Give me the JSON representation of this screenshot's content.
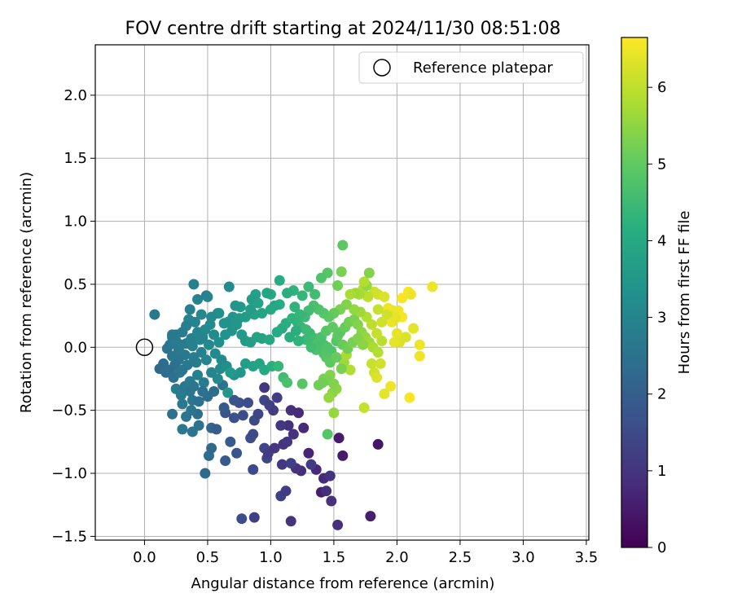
{
  "chart_data": {
    "type": "scatter",
    "title": "FOV centre drift starting at 2024/11/30 08:51:08",
    "xlabel": "Angular distance from reference (arcmin)",
    "ylabel": "Rotation from reference (arcmin)",
    "xlim": [
      -0.39,
      3.52
    ],
    "ylim": [
      -1.53,
      2.4
    ],
    "xticks": [
      0.0,
      0.5,
      1.0,
      1.5,
      2.0,
      2.5,
      3.0,
      3.5
    ],
    "xtick_labels": [
      "0.0",
      "0.5",
      "1.0",
      "1.5",
      "2.0",
      "2.5",
      "3.0",
      "3.5"
    ],
    "yticks": [
      -1.5,
      -1.0,
      -0.5,
      0.0,
      0.5,
      1.0,
      1.5,
      2.0
    ],
    "ytick_labels": [
      "−1.5",
      "−1.0",
      "−0.5",
      "0.0",
      "0.5",
      "1.0",
      "1.5",
      "2.0"
    ],
    "grid": true,
    "legend": {
      "position": "top-right",
      "entries": [
        "Reference platepar"
      ]
    },
    "reference_point": {
      "x": 0.0,
      "y": 0.0,
      "label": "Reference platepar"
    },
    "colorbar": {
      "label": "Hours from first FF file",
      "colormap": "viridis",
      "range": [
        0,
        6.65
      ],
      "ticks": [
        0,
        1,
        2,
        3,
        4,
        5,
        6
      ],
      "tick_labels": [
        "0",
        "1",
        "2",
        "3",
        "4",
        "5",
        "6"
      ]
    },
    "points": [
      [
        0.77,
        -1.36,
        1.6
      ],
      [
        0.87,
        -1.35,
        1.3
      ],
      [
        1.16,
        -1.38,
        1.0
      ],
      [
        1.53,
        -1.41,
        0.9
      ],
      [
        1.79,
        -1.34,
        0.6
      ],
      [
        1.48,
        -1.22,
        1.0
      ],
      [
        1.08,
        -1.18,
        1.3
      ],
      [
        1.12,
        -1.14,
        1.2
      ],
      [
        1.4,
        -1.15,
        0.6
      ],
      [
        1.44,
        -1.14,
        0.9
      ],
      [
        1.42,
        -1.04,
        0.8
      ],
      [
        1.47,
        -1.02,
        1.0
      ],
      [
        1.36,
        -0.97,
        0.8
      ],
      [
        1.32,
        -0.93,
        1.2
      ],
      [
        1.24,
        -0.98,
        0.9
      ],
      [
        1.2,
        -0.96,
        1.0
      ],
      [
        1.09,
        -0.93,
        1.1
      ],
      [
        1.16,
        -0.92,
        1.3
      ],
      [
        0.97,
        -0.88,
        1.4
      ],
      [
        0.86,
        -0.97,
        1.5
      ],
      [
        0.73,
        -0.84,
        1.8
      ],
      [
        0.64,
        -0.9,
        1.9
      ],
      [
        0.48,
        -1.0,
        2.3
      ],
      [
        0.51,
        -0.86,
        2.4
      ],
      [
        0.53,
        -0.8,
        2.3
      ],
      [
        0.53,
        -0.64,
        2.2
      ],
      [
        0.57,
        -0.65,
        2.0
      ],
      [
        0.68,
        -0.75,
        1.9
      ],
      [
        0.84,
        -0.72,
        1.6
      ],
      [
        0.86,
        -0.69,
        1.5
      ],
      [
        0.95,
        -0.8,
        1.4
      ],
      [
        0.98,
        -0.84,
        1.2
      ],
      [
        1.03,
        -0.8,
        1.1
      ],
      [
        1.1,
        -0.77,
        1.0
      ],
      [
        1.13,
        -0.75,
        1.1
      ],
      [
        1.18,
        -0.69,
        1.0
      ],
      [
        1.14,
        -0.62,
        0.9
      ],
      [
        1.26,
        -0.64,
        0.8
      ],
      [
        1.3,
        -0.84,
        0.7
      ],
      [
        1.57,
        -0.86,
        0.5
      ],
      [
        1.54,
        -0.72,
        0.5
      ],
      [
        1.85,
        -0.77,
        0.4
      ],
      [
        1.45,
        -0.69,
        4.9
      ],
      [
        0.64,
        -0.52,
        1.8
      ],
      [
        0.71,
        -0.56,
        1.7
      ],
      [
        0.78,
        -0.54,
        1.6
      ],
      [
        0.87,
        -0.58,
        1.5
      ],
      [
        0.9,
        -0.53,
        1.4
      ],
      [
        0.95,
        -0.42,
        1.4
      ],
      [
        0.99,
        -0.46,
        1.3
      ],
      [
        1.02,
        -0.5,
        1.2
      ],
      [
        1.05,
        -0.4,
        1.2
      ],
      [
        0.95,
        -0.32,
        1.1
      ],
      [
        1.08,
        -0.62,
        1.1
      ],
      [
        1.16,
        -0.5,
        0.9
      ],
      [
        1.22,
        -0.52,
        0.8
      ],
      [
        0.75,
        -0.44,
        1.7
      ],
      [
        0.82,
        -0.44,
        1.6
      ],
      [
        0.71,
        -0.42,
        1.8
      ],
      [
        0.63,
        -0.48,
        1.9
      ],
      [
        0.42,
        -0.53,
        2.4
      ],
      [
        0.43,
        -0.62,
        2.5
      ],
      [
        0.38,
        -0.67,
        2.6
      ],
      [
        0.3,
        -0.65,
        2.7
      ],
      [
        0.22,
        -0.53,
        2.5
      ],
      [
        0.33,
        -0.55,
        2.6
      ],
      [
        0.37,
        -0.5,
        2.6
      ],
      [
        0.3,
        -0.45,
        2.7
      ],
      [
        0.38,
        -0.42,
        2.6
      ],
      [
        0.43,
        -0.43,
        2.5
      ],
      [
        0.5,
        -0.39,
        2.4
      ],
      [
        0.55,
        -0.35,
        2.4
      ],
      [
        0.62,
        -0.3,
        2.5
      ],
      [
        0.66,
        -0.36,
        3.5
      ],
      [
        0.29,
        -0.38,
        2.8
      ],
      [
        0.25,
        -0.33,
        2.8
      ],
      [
        0.32,
        -0.31,
        2.7
      ],
      [
        0.36,
        -0.27,
        2.8
      ],
      [
        0.42,
        -0.22,
        2.9
      ],
      [
        0.47,
        -0.28,
        2.8
      ],
      [
        0.53,
        -0.2,
        3.0
      ],
      [
        0.58,
        -0.25,
        3.1
      ],
      [
        0.6,
        -0.17,
        3.2
      ],
      [
        0.65,
        -0.15,
        3.3
      ],
      [
        0.71,
        -0.22,
        3.4
      ],
      [
        0.76,
        -0.2,
        3.5
      ],
      [
        0.68,
        -0.2,
        3.6
      ],
      [
        0.8,
        -0.13,
        3.7
      ],
      [
        0.86,
        -0.15,
        3.8
      ],
      [
        0.91,
        -0.13,
        3.9
      ],
      [
        0.95,
        -0.18,
        4.0
      ],
      [
        1.01,
        -0.15,
        4.2
      ],
      [
        1.06,
        -0.15,
        4.4
      ],
      [
        1.1,
        -0.24,
        4.6
      ],
      [
        1.13,
        -0.28,
        4.7
      ],
      [
        1.25,
        -0.29,
        4.9
      ],
      [
        1.38,
        -0.3,
        5.2
      ],
      [
        1.42,
        -0.25,
        5.3
      ],
      [
        1.47,
        -0.22,
        5.4
      ],
      [
        1.49,
        -0.36,
        5.5
      ],
      [
        1.5,
        -0.52,
        5.6
      ],
      [
        1.46,
        -0.4,
        5.6
      ],
      [
        1.52,
        -0.33,
        5.5
      ],
      [
        1.58,
        -0.12,
        5.7
      ],
      [
        1.6,
        -0.06,
        5.8
      ],
      [
        1.63,
        -0.18,
        5.9
      ],
      [
        1.74,
        -0.48,
        6.1
      ],
      [
        1.82,
        -0.2,
        6.2
      ],
      [
        1.84,
        -0.24,
        6.3
      ],
      [
        1.8,
        -0.13,
        6.1
      ],
      [
        1.87,
        -0.13,
        6.2
      ],
      [
        1.9,
        -0.37,
        6.4
      ],
      [
        1.95,
        -0.31,
        6.5
      ],
      [
        2.1,
        -0.4,
        6.6
      ],
      [
        2.18,
        -0.07,
        6.5
      ],
      [
        2.18,
        0.02,
        6.5
      ],
      [
        2.13,
        0.15,
        6.4
      ],
      [
        2.07,
        0.08,
        6.3
      ],
      [
        2.02,
        0.04,
        6.3
      ],
      [
        1.98,
        0.04,
        6.4
      ],
      [
        2.0,
        0.11,
        6.4
      ],
      [
        1.96,
        0.2,
        6.5
      ],
      [
        1.97,
        0.29,
        6.4
      ],
      [
        2.01,
        0.29,
        6.5
      ],
      [
        2.04,
        0.24,
        6.6
      ],
      [
        1.99,
        0.23,
        6.4
      ],
      [
        1.88,
        0.2,
        6.2
      ],
      [
        1.93,
        0.31,
        6.5
      ],
      [
        2.09,
        0.44,
        6.6
      ],
      [
        2.11,
        0.42,
        6.5
      ],
      [
        2.04,
        0.39,
        6.6
      ],
      [
        2.28,
        0.48,
        6.5
      ],
      [
        1.85,
        0.42,
        6.2
      ],
      [
        1.82,
        0.44,
        6.2
      ],
      [
        1.9,
        0.4,
        6.3
      ],
      [
        1.77,
        0.4,
        6.0
      ],
      [
        1.73,
        0.46,
        5.9
      ],
      [
        1.7,
        0.42,
        5.8
      ],
      [
        1.67,
        0.43,
        5.7
      ],
      [
        1.63,
        0.42,
        5.8
      ],
      [
        1.76,
        0.49,
        5.6
      ],
      [
        1.74,
        0.52,
        5.9
      ],
      [
        1.78,
        0.59,
        5.4
      ],
      [
        1.56,
        0.6,
        5.3
      ],
      [
        1.57,
        0.81,
        5.0
      ],
      [
        1.53,
        0.49,
        5.2
      ],
      [
        1.45,
        0.59,
        4.9
      ],
      [
        1.4,
        0.55,
        4.8
      ],
      [
        1.35,
        0.42,
        4.6
      ],
      [
        1.3,
        0.48,
        4.5
      ],
      [
        1.25,
        0.41,
        4.4
      ],
      [
        1.18,
        0.45,
        4.3
      ],
      [
        1.13,
        0.43,
        4.2
      ],
      [
        1.07,
        0.53,
        4.1
      ],
      [
        1.0,
        0.42,
        4.0
      ],
      [
        0.97,
        0.43,
        3.9
      ],
      [
        0.88,
        0.42,
        3.8
      ],
      [
        0.85,
        0.38,
        3.7
      ],
      [
        0.9,
        0.35,
        3.8
      ],
      [
        1.07,
        0.34,
        4.1
      ],
      [
        1.03,
        0.33,
        4.0
      ],
      [
        1.0,
        0.3,
        4.0
      ],
      [
        0.93,
        0.27,
        3.9
      ],
      [
        0.87,
        0.26,
        3.8
      ],
      [
        0.8,
        0.24,
        3.7
      ],
      [
        0.75,
        0.23,
        3.6
      ],
      [
        0.7,
        0.24,
        3.5
      ],
      [
        0.66,
        0.2,
        3.5
      ],
      [
        0.63,
        0.19,
        3.4
      ],
      [
        0.58,
        0.27,
        3.3
      ],
      [
        0.53,
        0.24,
        3.2
      ],
      [
        0.45,
        0.26,
        3.1
      ],
      [
        0.4,
        0.2,
        3.0
      ],
      [
        0.35,
        0.22,
        3.0
      ],
      [
        0.33,
        0.17,
        2.9
      ],
      [
        0.3,
        0.12,
        2.8
      ],
      [
        0.25,
        0.1,
        2.8
      ],
      [
        0.22,
        0.08,
        2.7
      ],
      [
        0.2,
        0.02,
        2.7
      ],
      [
        0.27,
        -0.02,
        2.7
      ],
      [
        0.33,
        0.03,
        2.8
      ],
      [
        0.37,
        0.07,
        2.9
      ],
      [
        0.42,
        0.12,
        3.0
      ],
      [
        0.46,
        0.08,
        3.0
      ],
      [
        0.51,
        0.02,
        3.1
      ],
      [
        0.55,
        0.1,
        3.2
      ],
      [
        0.59,
        0.04,
        3.3
      ],
      [
        0.64,
        0.1,
        3.4
      ],
      [
        0.69,
        0.13,
        3.4
      ],
      [
        0.73,
        0.18,
        3.5
      ],
      [
        0.77,
        0.1,
        3.6
      ],
      [
        0.8,
        0.05,
        3.6
      ],
      [
        0.84,
        0.04,
        3.7
      ],
      [
        0.89,
        0.08,
        3.8
      ],
      [
        0.93,
        0.07,
        3.9
      ],
      [
        0.99,
        0.06,
        4.0
      ],
      [
        1.05,
        0.12,
        4.1
      ],
      [
        1.09,
        0.15,
        4.1
      ],
      [
        1.12,
        0.19,
        4.2
      ],
      [
        1.17,
        0.23,
        4.3
      ],
      [
        1.21,
        0.2,
        4.3
      ],
      [
        1.24,
        0.16,
        4.4
      ],
      [
        1.28,
        0.14,
        4.5
      ],
      [
        1.31,
        0.11,
        4.5
      ],
      [
        1.35,
        0.07,
        4.6
      ],
      [
        1.38,
        0.04,
        4.7
      ],
      [
        1.42,
        0.02,
        4.7
      ],
      [
        1.45,
        0.0,
        4.8
      ],
      [
        1.48,
        -0.03,
        4.8
      ],
      [
        1.52,
        0.05,
        4.9
      ],
      [
        1.55,
        0.12,
        5.0
      ],
      [
        1.59,
        0.16,
        5.1
      ],
      [
        1.62,
        0.2,
        5.2
      ],
      [
        1.66,
        0.22,
        5.3
      ],
      [
        1.69,
        0.18,
        5.4
      ],
      [
        1.72,
        0.12,
        5.5
      ],
      [
        1.75,
        0.08,
        5.6
      ],
      [
        1.78,
        0.04,
        5.7
      ],
      [
        1.81,
        0.0,
        5.8
      ],
      [
        1.85,
        -0.04,
        5.9
      ],
      [
        1.88,
        0.05,
        6.0
      ],
      [
        1.84,
        0.11,
        6.1
      ],
      [
        1.8,
        0.18,
        6.0
      ],
      [
        1.76,
        0.24,
        5.9
      ],
      [
        1.71,
        0.28,
        5.7
      ],
      [
        1.66,
        0.3,
        5.6
      ],
      [
        1.6,
        0.34,
        5.4
      ],
      [
        1.55,
        0.3,
        5.3
      ],
      [
        1.5,
        0.27,
        5.1
      ],
      [
        1.46,
        0.24,
        5.0
      ],
      [
        1.42,
        0.27,
        4.9
      ],
      [
        1.38,
        0.3,
        4.8
      ],
      [
        1.34,
        0.33,
        4.7
      ],
      [
        1.3,
        0.29,
        4.6
      ],
      [
        1.27,
        0.24,
        4.5
      ],
      [
        1.23,
        0.26,
        4.4
      ],
      [
        1.19,
        0.32,
        4.3
      ],
      [
        1.4,
        0.08,
        4.7
      ],
      [
        1.44,
        0.13,
        4.9
      ],
      [
        1.49,
        0.16,
        5.0
      ],
      [
        1.53,
        0.09,
        5.0
      ],
      [
        1.57,
        0.02,
        5.1
      ],
      [
        1.61,
        -0.01,
        5.2
      ],
      [
        1.65,
        0.04,
        5.3
      ],
      [
        1.69,
        0.07,
        5.4
      ],
      [
        1.73,
        0.02,
        5.5
      ],
      [
        1.92,
        0.26,
        6.2
      ],
      [
        1.85,
        0.3,
        6.1
      ],
      [
        1.42,
        -0.05,
        4.8
      ],
      [
        1.36,
        -0.02,
        4.7
      ],
      [
        1.32,
        0.0,
        4.6
      ],
      [
        1.28,
        0.06,
        4.5
      ],
      [
        1.22,
        0.05,
        4.3
      ],
      [
        1.44,
        -0.08,
        4.9
      ],
      [
        1.47,
        -0.12,
        5.0
      ],
      [
        1.52,
        -0.08,
        5.1
      ],
      [
        1.56,
        -0.17,
        5.3
      ],
      [
        1.45,
        -0.26,
        5.3
      ],
      [
        1.5,
        -0.29,
        5.4
      ],
      [
        1.41,
        -0.28,
        5.2
      ],
      [
        1.2,
        0.13,
        4.2
      ],
      [
        1.15,
        0.08,
        4.2
      ],
      [
        0.39,
        0.5,
        2.9
      ],
      [
        0.42,
        0.38,
        3.0
      ],
      [
        0.49,
        0.41,
        2.7
      ],
      [
        0.5,
        0.4,
        3.0
      ],
      [
        0.67,
        0.48,
        3.2
      ],
      [
        0.76,
        0.32,
        3.6
      ],
      [
        0.84,
        0.3,
        3.7
      ],
      [
        0.72,
        0.33,
        3.5
      ],
      [
        0.59,
        0.27,
        3.3
      ],
      [
        0.52,
        0.18,
        3.2
      ],
      [
        0.48,
        0.14,
        3.1
      ],
      [
        0.44,
        0.06,
        3.0
      ],
      [
        0.38,
        0.01,
        2.9
      ],
      [
        0.32,
        -0.06,
        2.7
      ],
      [
        0.27,
        -0.1,
        2.6
      ],
      [
        0.24,
        -0.14,
        2.5
      ],
      [
        0.2,
        -0.18,
        2.4
      ],
      [
        0.15,
        -0.13,
        2.4
      ],
      [
        0.12,
        -0.17,
        2.3
      ],
      [
        0.17,
        -0.2,
        2.4
      ],
      [
        0.23,
        -0.24,
        2.5
      ],
      [
        0.28,
        -0.2,
        2.6
      ],
      [
        0.34,
        -0.14,
        2.7
      ],
      [
        0.39,
        -0.08,
        2.8
      ],
      [
        0.45,
        -0.04,
        2.9
      ],
      [
        0.49,
        -0.1,
        3.0
      ],
      [
        0.56,
        -0.05,
        3.1
      ],
      [
        0.61,
        -0.1,
        3.2
      ],
      [
        0.36,
        -0.35,
        2.6
      ],
      [
        0.39,
        -0.31,
        2.6
      ],
      [
        0.46,
        -0.35,
        2.5
      ],
      [
        0.41,
        -0.12,
        2.8
      ],
      [
        0.3,
        -0.18,
        2.6
      ],
      [
        0.22,
        -0.07,
        2.6
      ],
      [
        0.18,
        -0.01,
        2.6
      ],
      [
        0.25,
        0.05,
        2.8
      ],
      [
        0.29,
        0.02,
        2.8
      ],
      [
        0.08,
        0.26,
        2.7
      ],
      [
        0.22,
        0.1,
        2.7
      ],
      [
        0.36,
        0.3,
        2.9
      ]
    ]
  }
}
